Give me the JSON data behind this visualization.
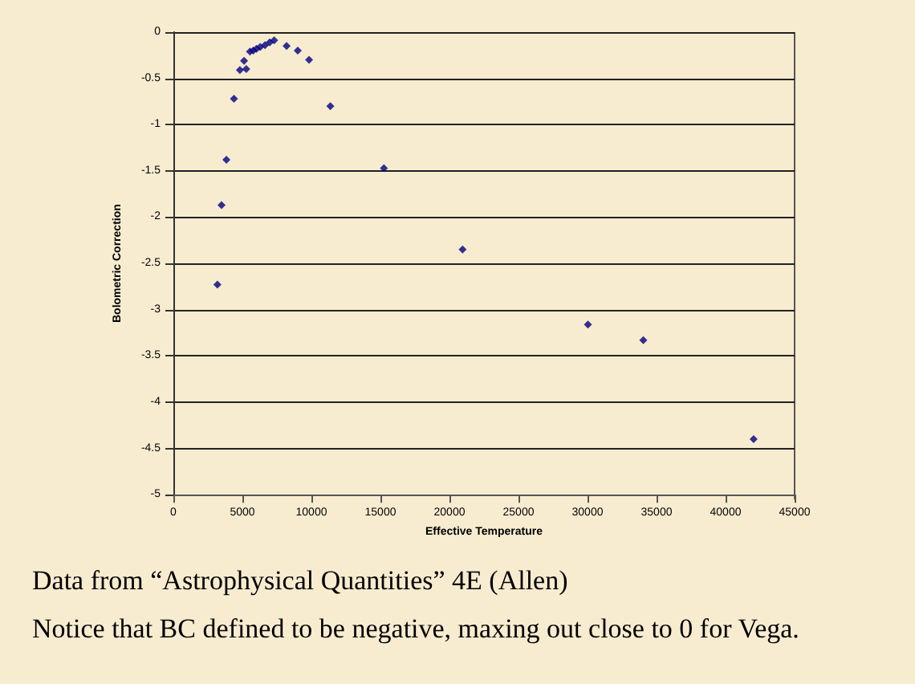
{
  "chart_data": {
    "type": "scatter",
    "xlabel": "Effective Temperature",
    "ylabel": "Bolometric Correction",
    "x": [
      3190,
      3490,
      3840,
      4390,
      4820,
      5120,
      5280,
      5550,
      5790,
      6020,
      6290,
      6640,
      6980,
      7300,
      8200,
      9010,
      9830,
      11370,
      15250,
      20950,
      30030,
      34040,
      42030
    ],
    "series": [
      {
        "color": "#000080",
        "values": [
          -2.73,
          -1.87,
          -1.38,
          -0.72,
          -0.41,
          -0.31,
          -0.4,
          -0.21,
          -0.2,
          -0.18,
          -0.16,
          -0.14,
          -0.11,
          -0.09,
          -0.15,
          -0.2,
          -0.3,
          -0.8,
          -1.47,
          -2.35,
          -3.16,
          -3.33,
          -4.4
        ]
      }
    ],
    "xlim": [
      0,
      45000
    ],
    "xticks": [
      0,
      5000,
      10000,
      15000,
      20000,
      25000,
      30000,
      35000,
      40000,
      45000
    ],
    "ylim": [
      -5,
      0
    ],
    "yticks": [
      -5,
      -4.5,
      -4,
      -3.5,
      -3,
      -2.5,
      -2,
      -1.5,
      -1,
      -0.5,
      0
    ],
    "grid": "y",
    "marker": "diamond",
    "annotations": [
      "Data from “Astrophysical Quantities” 4E (Allen)",
      "Notice that BC defined to be negative, maxing out close to 0 for Vega."
    ]
  }
}
